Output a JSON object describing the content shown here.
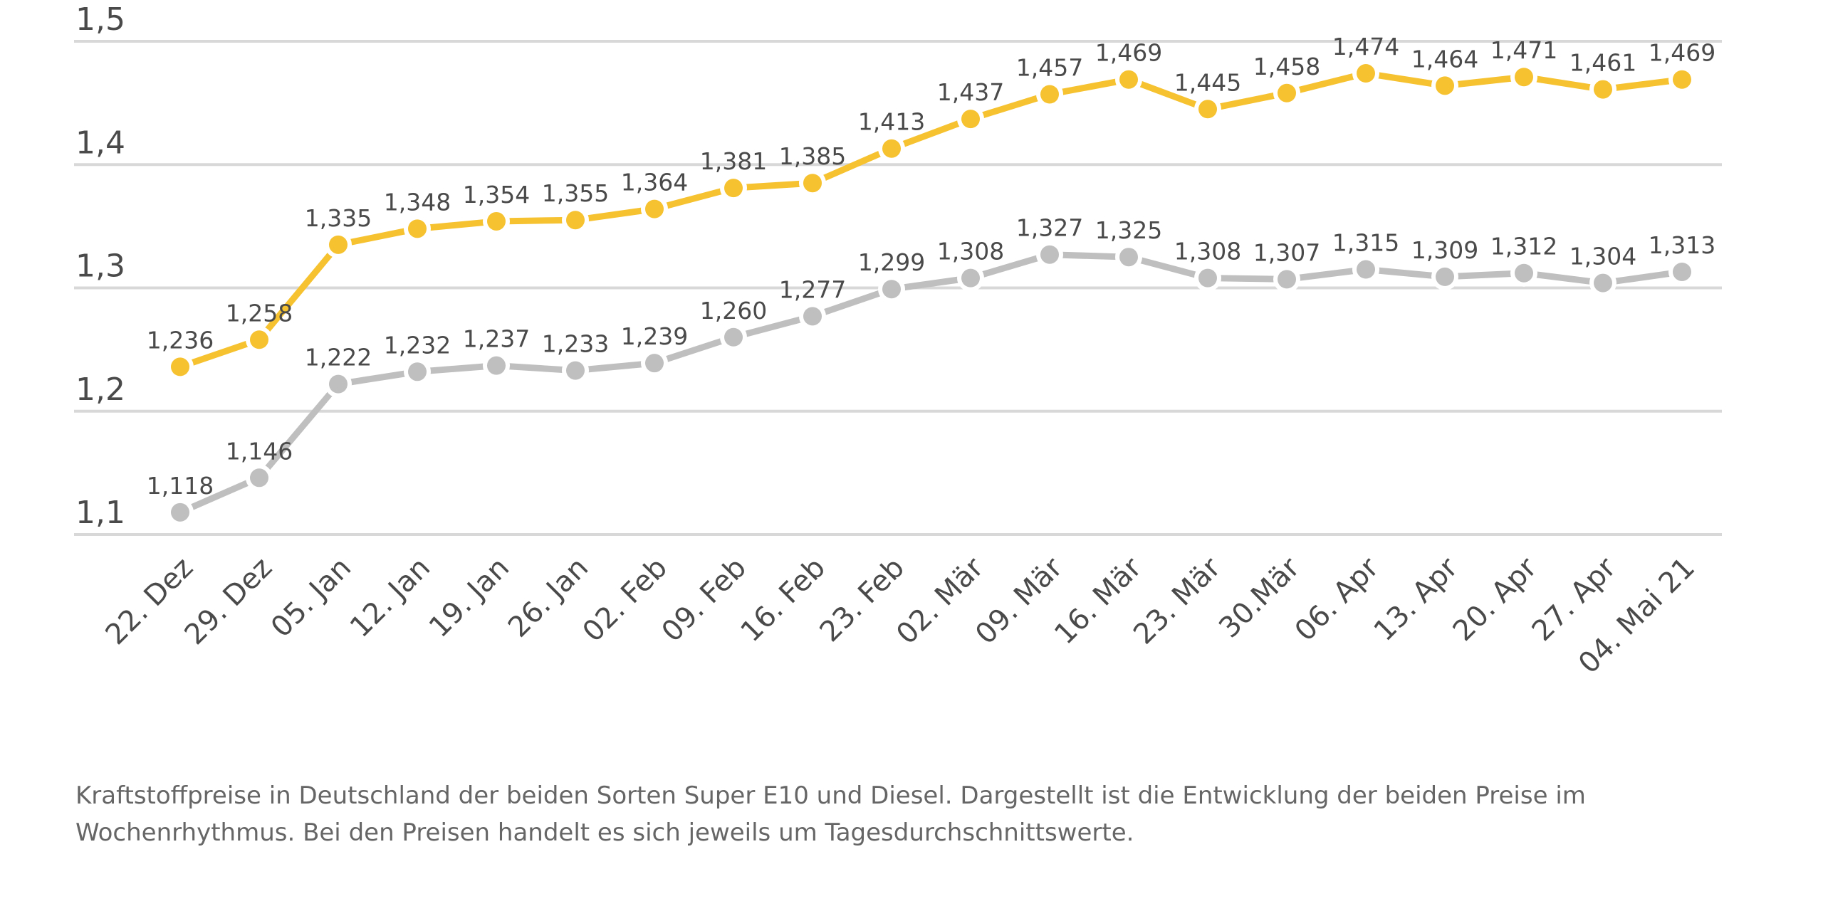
{
  "chart_data": {
    "type": "line",
    "title": "",
    "xlabel": "",
    "ylabel": "",
    "ylim": [
      1.1,
      1.5
    ],
    "yticks": [
      1.1,
      1.2,
      1.3,
      1.4,
      1.5
    ],
    "ytick_labels": [
      "1,1",
      "1,2",
      "1,3",
      "1,4",
      "1,5"
    ],
    "grid": true,
    "legend": "none",
    "categories": [
      "22. Dez",
      "29. Dez",
      "05. Jan",
      "12. Jan",
      "19. Jan",
      "26. Jan",
      "02. Feb",
      "09. Feb",
      "16. Feb",
      "23. Feb",
      "02. Mär",
      "09. Mär",
      "16. Mär",
      "23. Mär",
      "30.Mär",
      "06. Apr",
      "13. Apr",
      "20. Apr",
      "27. Apr",
      "04. Mai 21"
    ],
    "series": [
      {
        "name": "Super E10",
        "color": "#F6C230",
        "values": [
          1.236,
          1.258,
          1.335,
          1.348,
          1.354,
          1.355,
          1.364,
          1.381,
          1.385,
          1.413,
          1.437,
          1.457,
          1.469,
          1.445,
          1.458,
          1.474,
          1.464,
          1.471,
          1.461,
          1.469
        ],
        "labels": [
          "1,236",
          "1,258",
          "1,335",
          "1,348",
          "1,354",
          "1,355",
          "1,364",
          "1,381",
          "1,385",
          "1,413",
          "1,437",
          "1,457",
          "1,469",
          "1,445",
          "1,458",
          "1,474",
          "1,464",
          "1,471",
          "1,461",
          "1,469"
        ]
      },
      {
        "name": "Diesel",
        "color": "#BFBFBF",
        "values": [
          1.118,
          1.146,
          1.222,
          1.232,
          1.237,
          1.233,
          1.239,
          1.26,
          1.277,
          1.299,
          1.308,
          1.327,
          1.325,
          1.308,
          1.307,
          1.315,
          1.309,
          1.312,
          1.304,
          1.313
        ],
        "labels": [
          "1,118",
          "1,146",
          "1,222",
          "1,232",
          "1,237",
          "1,233",
          "1,239",
          "1,260",
          "1,277",
          "1,299",
          "1,308",
          "1,327",
          "1,325",
          "1,308",
          "1,307",
          "1,315",
          "1,309",
          "1,312",
          "1,304",
          "1,313"
        ]
      }
    ]
  },
  "caption": "Kraftstoffpreise in Deutschland der beiden Sorten Super E10 und Diesel. Dargestellt ist die Entwicklung der beiden Preise im Wochenrhythmus. Bei den Preisen handelt es sich jeweils um Tagesdurchschnittswerte."
}
